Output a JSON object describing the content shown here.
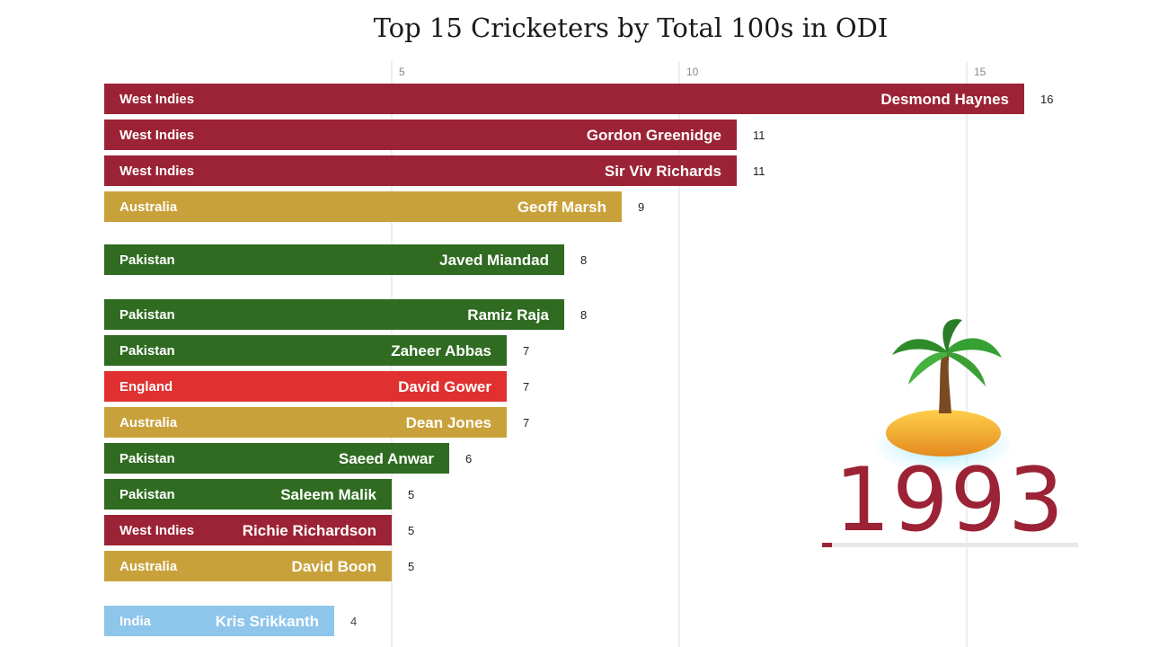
{
  "chart_data": {
    "type": "bar",
    "orientation": "horizontal",
    "title": "Top 15 Cricketers by Total 100s in ODI",
    "xlabel": "",
    "ylabel": "",
    "xlim": [
      0,
      16
    ],
    "x_ticks": [
      5,
      10,
      15
    ],
    "grid": "vertical",
    "current_year": "1993",
    "year_progress": 0.04,
    "year_icon": "desert-island-icon",
    "bars": [
      {
        "player": "Desmond Haynes",
        "country": "West Indies",
        "value": 16
      },
      {
        "player": "Gordon Greenidge",
        "country": "West Indies",
        "value": 11
      },
      {
        "player": "Sir Viv Richards",
        "country": "West Indies",
        "value": 11
      },
      {
        "player": "Geoff Marsh",
        "country": "Australia",
        "value": 9
      },
      {
        "player": "Javed Miandad",
        "country": "Pakistan",
        "value": 8
      },
      {
        "player": "Ramiz Raja",
        "country": "Pakistan",
        "value": 8
      },
      {
        "player": "Zaheer Abbas",
        "country": "Pakistan",
        "value": 7
      },
      {
        "player": "David Gower",
        "country": "England",
        "value": 7
      },
      {
        "player": "Dean Jones",
        "country": "Australia",
        "value": 7
      },
      {
        "player": "Saeed Anwar",
        "country": "Pakistan",
        "value": 6
      },
      {
        "player": "Saleem Malik",
        "country": "Pakistan",
        "value": 5
      },
      {
        "player": "Richie Richardson",
        "country": "West Indies",
        "value": 5
      },
      {
        "player": "David Boon",
        "country": "Australia",
        "value": 5
      },
      {
        "player": "Kris Srikkanth",
        "country": "India",
        "value": 4,
        "fading": true
      }
    ],
    "country_colors": {
      "West Indies": "#9b2335",
      "Australia": "#c9a13a",
      "Pakistan": "#2f6b21",
      "England": "#e03030",
      "India": "#7bbbe8"
    }
  }
}
